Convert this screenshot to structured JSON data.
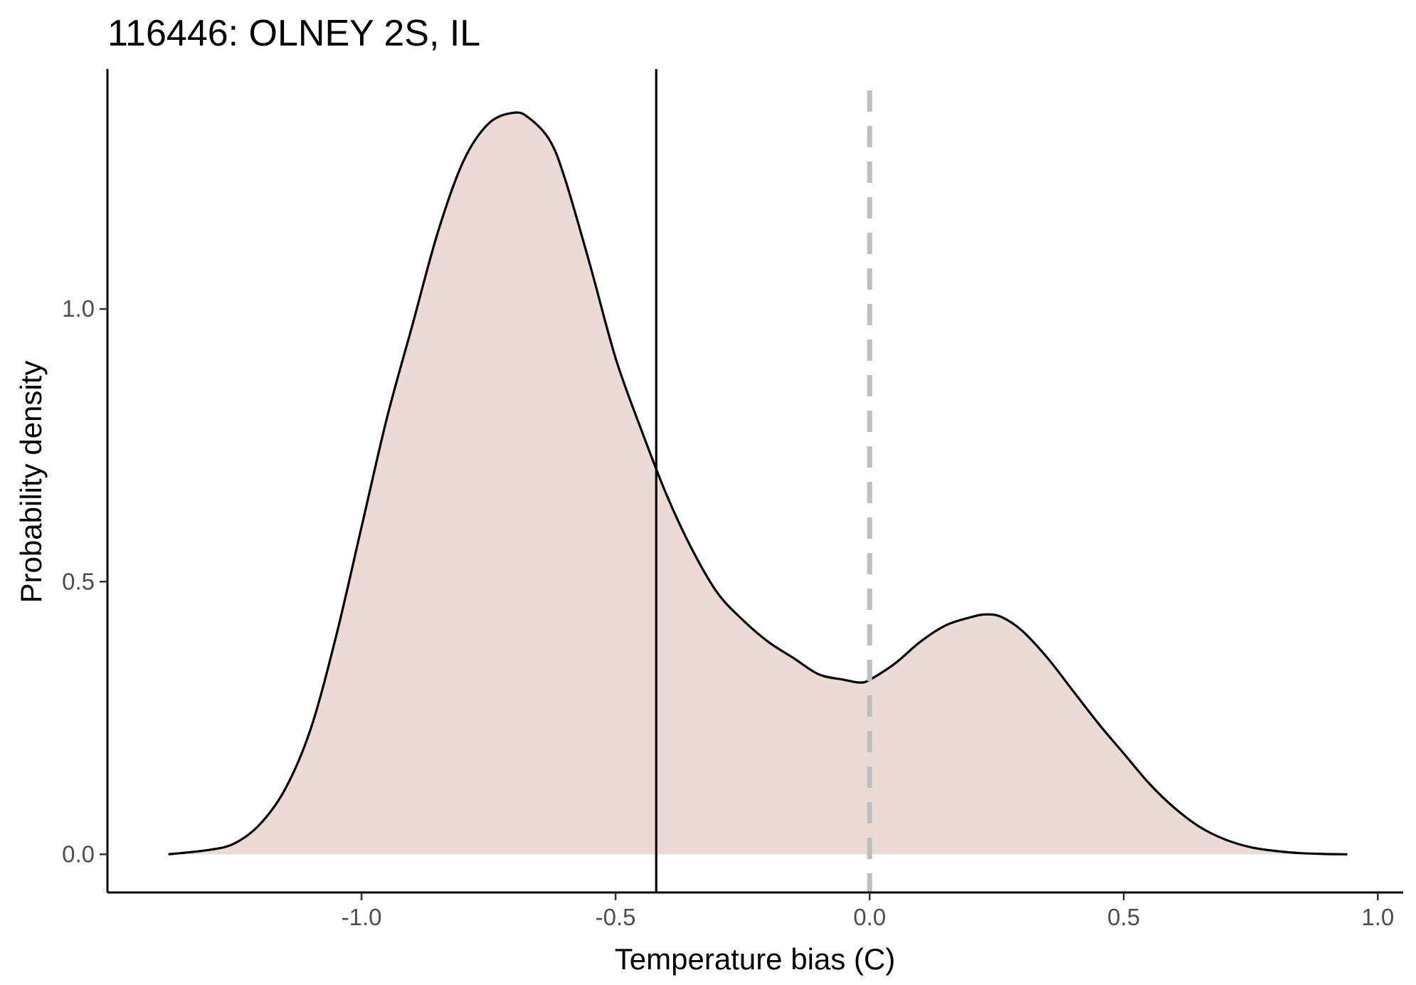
{
  "chart_data": {
    "type": "area",
    "title": "116446: OLNEY 2S, IL",
    "xlabel": "Temperature bias (C)",
    "ylabel": "Probability density",
    "xlim": [
      -1.5,
      1.05
    ],
    "ylim": [
      -0.07,
      1.44
    ],
    "x_ticks": [
      -1.0,
      -0.5,
      0.0,
      0.5,
      1.0
    ],
    "x_tick_labels": [
      "-1.0",
      "-0.5",
      "0.0",
      "0.5",
      "1.0"
    ],
    "y_ticks": [
      0.0,
      0.5,
      1.0
    ],
    "y_tick_labels": [
      "0.0",
      "0.5",
      "1.0"
    ],
    "grid": false,
    "fill_color": "#ecdad4",
    "line_color": "#000000",
    "series": [
      {
        "x": [
          -1.38,
          -1.3,
          -1.25,
          -1.2,
          -1.15,
          -1.1,
          -1.05,
          -1.0,
          -0.95,
          -0.9,
          -0.85,
          -0.8,
          -0.75,
          -0.7,
          -0.67,
          -0.63,
          -0.6,
          -0.55,
          -0.5,
          -0.45,
          -0.4,
          -0.35,
          -0.3,
          -0.25,
          -0.2,
          -0.15,
          -0.1,
          -0.05,
          -0.02,
          0.0,
          0.05,
          0.1,
          0.15,
          0.2,
          0.23,
          0.26,
          0.3,
          0.35,
          0.4,
          0.45,
          0.5,
          0.55,
          0.6,
          0.65,
          0.7,
          0.75,
          0.8,
          0.85,
          0.9,
          0.94
        ],
        "y": [
          0.0,
          0.008,
          0.02,
          0.055,
          0.12,
          0.23,
          0.4,
          0.6,
          0.8,
          0.97,
          1.14,
          1.27,
          1.34,
          1.36,
          1.35,
          1.31,
          1.24,
          1.08,
          0.91,
          0.78,
          0.66,
          0.56,
          0.48,
          0.43,
          0.39,
          0.36,
          0.33,
          0.32,
          0.315,
          0.32,
          0.35,
          0.39,
          0.42,
          0.435,
          0.44,
          0.435,
          0.41,
          0.36,
          0.3,
          0.24,
          0.185,
          0.13,
          0.085,
          0.05,
          0.027,
          0.013,
          0.006,
          0.002,
          0.0005,
          0.0
        ]
      }
    ],
    "vlines": [
      {
        "x": -0.42,
        "style": "solid",
        "color": "#000000"
      },
      {
        "x": 0.0,
        "style": "dashed",
        "color": "#bebebe"
      }
    ]
  }
}
